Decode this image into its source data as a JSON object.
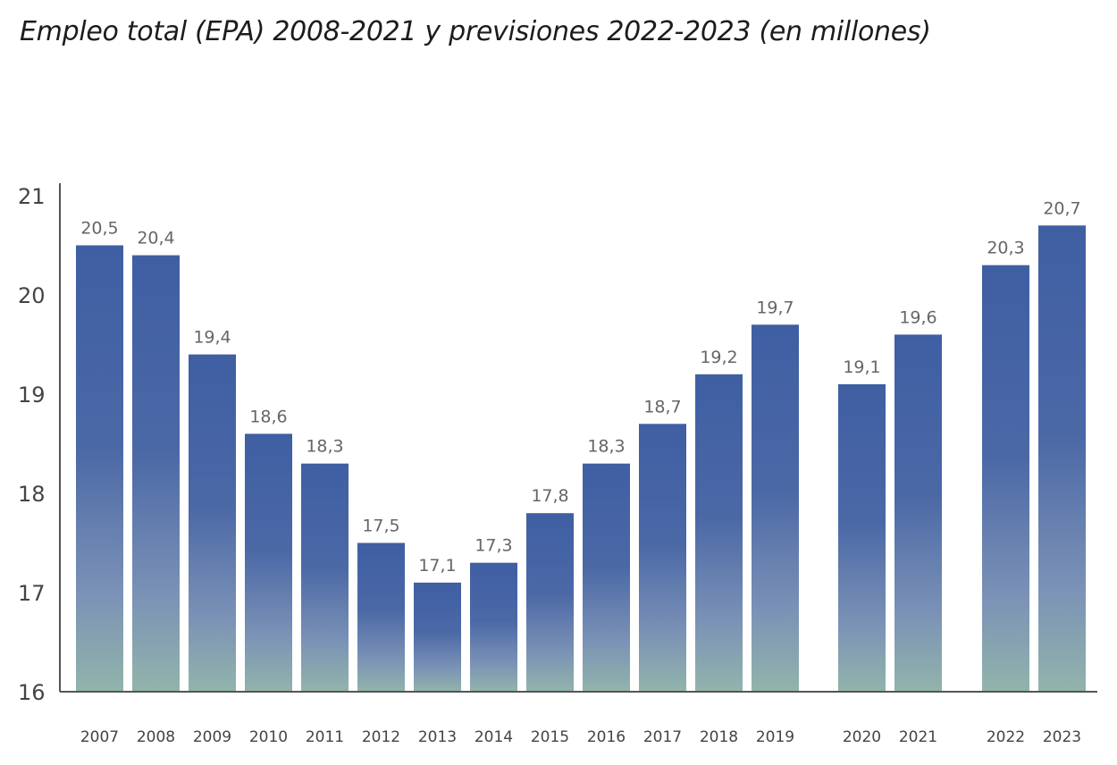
{
  "title": "Empleo total (EPA) 2008-2021 y previsiones 2022-2023 (en millones)",
  "chart_data": {
    "type": "bar",
    "title": "Empleo total (EPA) 2008-2021 y previsiones 2022-2023 (en millones)",
    "xlabel": "",
    "ylabel": "",
    "ylim": [
      16,
      21
    ],
    "yticks": [
      16,
      17,
      18,
      19,
      20,
      21
    ],
    "groups": [
      [
        "2007",
        "2008",
        "2009",
        "2010",
        "2011",
        "2012",
        "2013",
        "2014",
        "2015",
        "2016",
        "2017",
        "2018",
        "2019"
      ],
      [
        "2020",
        "2021"
      ],
      [
        "2022",
        "2023"
      ]
    ],
    "categories": [
      "2007",
      "2008",
      "2009",
      "2010",
      "2011",
      "2012",
      "2013",
      "2014",
      "2015",
      "2016",
      "2017",
      "2018",
      "2019",
      "2020",
      "2021",
      "2022",
      "2023"
    ],
    "values": [
      20.5,
      20.4,
      19.4,
      18.6,
      18.3,
      17.5,
      17.1,
      17.3,
      17.8,
      18.3,
      18.7,
      19.2,
      19.7,
      19.1,
      19.6,
      20.3,
      20.7
    ],
    "data_labels": [
      "20,5",
      "20,4",
      "19,4",
      "18,6",
      "18,3",
      "17,5",
      "17,1",
      "17,3",
      "17,8",
      "18,3",
      "18,7",
      "19,2",
      "19,7",
      "19,1",
      "19,6",
      "20,3",
      "20,7"
    ],
    "colors": {
      "bar_top": "#3f5fa3",
      "bar_mid": "#6e86b0",
      "bar_bottom": "#93b5ad",
      "axis": "#555555"
    }
  }
}
